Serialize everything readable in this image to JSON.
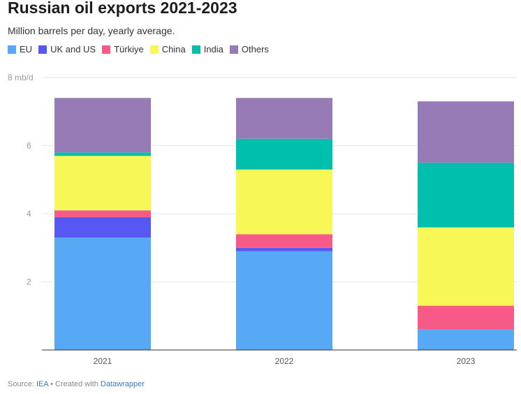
{
  "header": {
    "title": "Russian oil exports 2021-2023",
    "subtitle": "Million barrels per day, yearly average."
  },
  "footer": {
    "source_prefix": "Source: ",
    "source_name": "IEA",
    "separator": " • Created with ",
    "tool_name": "Datawrapper"
  },
  "chart_data": {
    "type": "bar",
    "stacked": true,
    "categories": [
      "2021",
      "2022",
      "2023"
    ],
    "series": [
      {
        "name": "EU",
        "color": "#58a9f5",
        "values": [
          3.3,
          2.9,
          0.6
        ]
      },
      {
        "name": "UK and US",
        "color": "#5757f2",
        "values": [
          0.6,
          0.1,
          0.0
        ]
      },
      {
        "name": "Türkiye",
        "color": "#f75a86",
        "values": [
          0.2,
          0.4,
          0.7
        ]
      },
      {
        "name": "China",
        "color": "#f7f758",
        "values": [
          1.6,
          1.9,
          2.3
        ]
      },
      {
        "name": "India",
        "color": "#00bfad",
        "values": [
          0.1,
          0.9,
          1.9
        ]
      },
      {
        "name": "Others",
        "color": "#977bb7",
        "values": [
          1.6,
          1.2,
          1.8
        ]
      }
    ],
    "yticks": [
      {
        "value": 2,
        "label": "2"
      },
      {
        "value": 4,
        "label": "4"
      },
      {
        "value": 6,
        "label": "6"
      },
      {
        "value": 8,
        "label": "8 mb/d"
      }
    ],
    "ylim": [
      0,
      8
    ],
    "grid": true,
    "legend_position": "top-left"
  }
}
